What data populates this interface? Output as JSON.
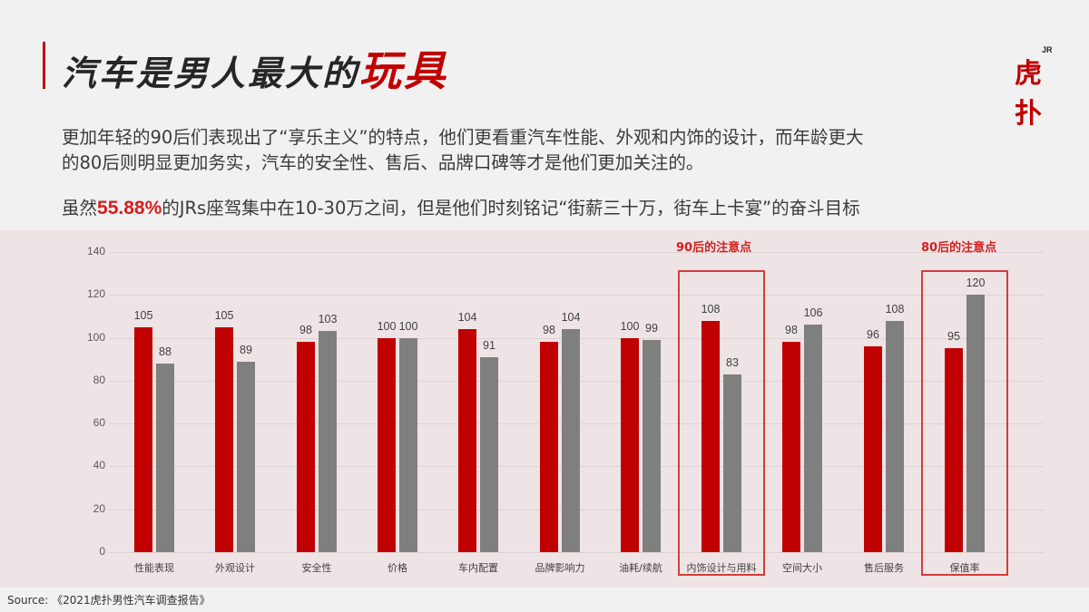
{
  "header": {
    "title_main": "汽车是男人最大的",
    "title_highlight": "玩具",
    "logo_text": "虎扑",
    "logo_sup": "JR"
  },
  "body_text": {
    "paragraph1_line1": "更加年轻的90后们表现出了“享乐主义”的特点，他们更看重汽车性能、外观和内饰的设计，而年龄更大",
    "paragraph1_line2": "的80后则明显更加务实，汽车的安全性、售后、品牌口碑等才是他们更加关注的。",
    "paragraph2_pre": "虽然",
    "paragraph2_highlight": "55.88%",
    "paragraph2_post": "的JRs座驾集中在10-30万之间，但是他们时刻铭记“街薪三十万，街车上卡宴”的奋斗目标"
  },
  "annotations": {
    "note_90s": "90后的注意点",
    "note_80s": "80后的注意点"
  },
  "source": "Source: 《2021虎扑男性汽车调查报告》",
  "colors": {
    "accent_red": "#c00000",
    "series_gray": "#7f7f7f",
    "chart_bg": "#efe4e5",
    "page_bg": "#f2f1f1"
  },
  "chart_data": {
    "type": "bar",
    "title": "",
    "xlabel": "",
    "ylabel": "",
    "ylim": [
      0,
      140
    ],
    "yticks": [
      "0",
      "20",
      "40",
      "60",
      "80",
      "100",
      "120",
      "140"
    ],
    "grid": true,
    "legend": "none",
    "categories": [
      "性能表现",
      "外观设计",
      "安全性",
      "价格",
      "车内配置",
      "品牌影响力",
      "油耗/续航",
      "内饰设计与用料",
      "空间大小",
      "售后服务",
      "保值率"
    ],
    "series": [
      {
        "name": "90后",
        "color": "#c00000",
        "values": [
          105,
          105,
          98,
          100,
          104,
          98,
          100,
          108,
          98,
          96,
          95
        ]
      },
      {
        "name": "80后",
        "color": "#7f7f7f",
        "values": [
          88,
          89,
          103,
          100,
          91,
          104,
          99,
          83,
          106,
          108,
          120
        ]
      }
    ],
    "highlights": [
      {
        "category": "内饰设计与用料",
        "label": "90后的注意点"
      },
      {
        "category": "保值率",
        "label": "80后的注意点"
      }
    ]
  }
}
